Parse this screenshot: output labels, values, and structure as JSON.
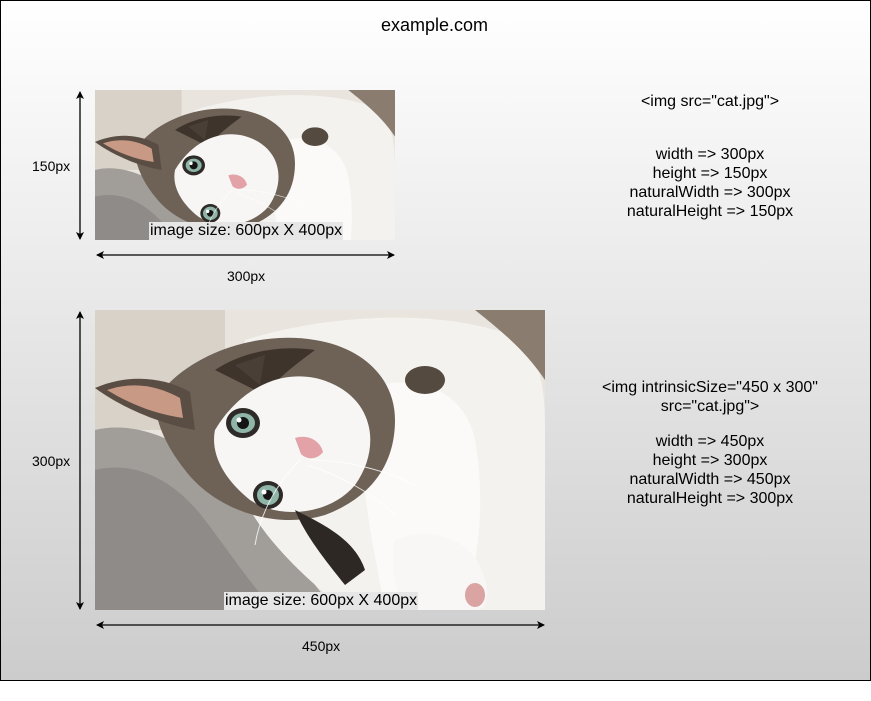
{
  "header": {
    "domain": "example.com"
  },
  "example1": {
    "caption": "image size: 600px X 400px",
    "height_label": "150px",
    "width_label": "300px",
    "tag": "<img src=\"cat.jpg\">",
    "props": [
      "width => 300px",
      "height => 150px",
      "naturalWidth => 300px",
      "naturalHeight => 150px"
    ]
  },
  "example2": {
    "caption": "image size: 600px X 400px",
    "height_label": "300px",
    "width_label": "450px",
    "tag_line1": "<img intrinsicSize=\"450 x 300\"",
    "tag_line2": "src=\"cat.jpg\">",
    "props": [
      "width => 450px",
      "height => 300px",
      "naturalWidth => 450px",
      "naturalHeight => 300px"
    ]
  },
  "colors": {
    "frame_top": "#ffffff",
    "frame_bottom": "#cccccc",
    "caption_bg": "#e6e6e6"
  }
}
